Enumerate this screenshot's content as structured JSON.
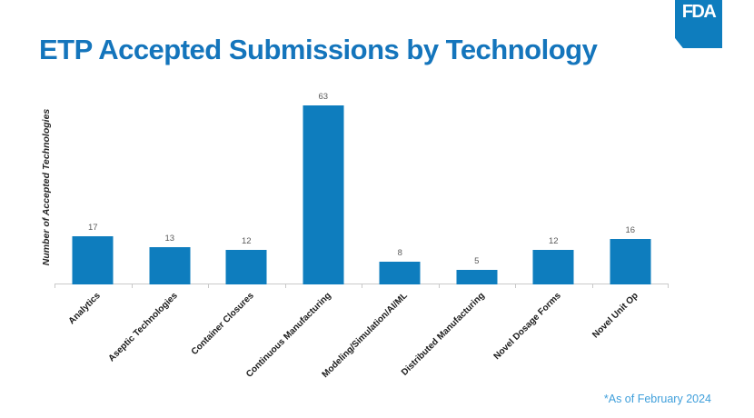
{
  "header": {
    "logo_text": "FDA"
  },
  "footnote": {
    "text": "*As of February 2024"
  },
  "colors": {
    "title": "#1475BC",
    "bar": "#0E7DBE",
    "logo_bg": "#0E7DBE",
    "footnote": "#3F9FDB",
    "value_label": "#595959",
    "axis_line": "#C9C9C9",
    "xlabel": "#1A1A1A"
  },
  "chart_data": {
    "type": "bar",
    "title": "ETP Accepted Submissions by Technology",
    "categories": [
      "Analytics",
      "Aseptic Technologies",
      "Container Closures",
      "Continuous Manufacturing",
      "Modeling/Simulation/AI/ML",
      "Distributed Manufacturing",
      "Novel Dosage Forms",
      "Novel Unit Op"
    ],
    "values": [
      17,
      13,
      12,
      63,
      8,
      5,
      12,
      16
    ],
    "xlabel": "",
    "ylabel": "Number of Accepted Technologies",
    "ylim": [
      0,
      63
    ],
    "grid": false,
    "legend": false,
    "data_labels": true,
    "x_tick_rotation_deg": -45
  }
}
